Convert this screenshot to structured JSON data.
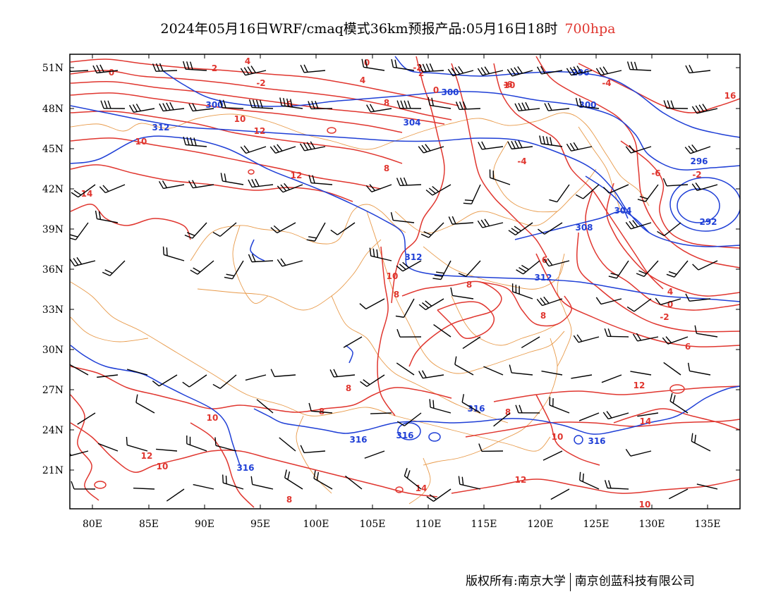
{
  "title": {
    "main": "2024年05月16日WRF/cmaq模式36km预报产品:05月16日18时",
    "level": "700hpa",
    "level_color": "#e0362f"
  },
  "axes": {
    "lat_labels": [
      "51N",
      "48N",
      "45N",
      "42N",
      "39N",
      "36N",
      "33N",
      "30N",
      "27N",
      "24N",
      "21N"
    ],
    "lon_labels": [
      "80E",
      "85E",
      "90E",
      "95E",
      "100E",
      "105E",
      "110E",
      "115E",
      "120E",
      "125E",
      "130E",
      "135E"
    ]
  },
  "colors": {
    "temperature_contour": "#e0362f",
    "geopotential_contour": "#1f3fd6",
    "boundary": "#e89a4a",
    "wind_barb": "#000000"
  },
  "contour_labels": {
    "temperature": [
      "0",
      "2",
      "4",
      "-2",
      "0",
      "-2",
      "4",
      "2",
      "0",
      "6",
      "8",
      "10",
      "10",
      "12",
      "8",
      "12",
      "14",
      "16",
      "-2",
      "-6",
      "-4",
      "6",
      "4",
      "0",
      "-2",
      "-4",
      "-6",
      "10",
      "8",
      "8",
      "8",
      "6",
      "8",
      "10",
      "12",
      "14",
      "14",
      "12",
      "10",
      "12",
      "10",
      "8",
      "8",
      "8",
      "10",
      "10"
    ],
    "height": [
      "296",
      "300",
      "300",
      "300",
      "304",
      "312",
      "304",
      "308",
      "312",
      "312",
      "296",
      "292",
      "316",
      "316",
      "316",
      "316",
      "316"
    ]
  },
  "footer": {
    "copyright_left": "版权所有:南京大学",
    "copyright_right": "南京创蓝科技有限公司"
  }
}
